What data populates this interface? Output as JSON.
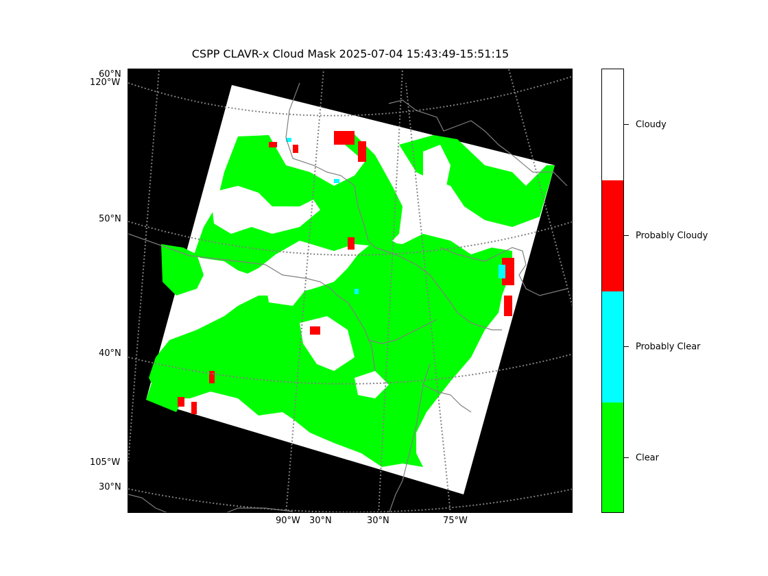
{
  "title": "CSPP CLAVR-x Cloud Mask 2025-07-04 15:43:49-15:51:15",
  "map": {
    "background_color": "#000000",
    "swath_color": "#ffffff",
    "graticule_color": "#808080",
    "coastline_color": "#808080",
    "left_labels": [
      "60°N",
      "120°W",
      "50°N",
      "40°N",
      "105°W",
      "30°N"
    ],
    "bottom_labels": [
      "90°W",
      "30°N",
      "30°N",
      "75°W"
    ]
  },
  "colorbar": {
    "categories": [
      {
        "label": "Cloudy",
        "color": "#ffffff"
      },
      {
        "label": "Probably Cloudy",
        "color": "#ff0000"
      },
      {
        "label": "Probably Clear",
        "color": "#00ffff"
      },
      {
        "label": "Clear",
        "color": "#00ff00"
      }
    ]
  }
}
